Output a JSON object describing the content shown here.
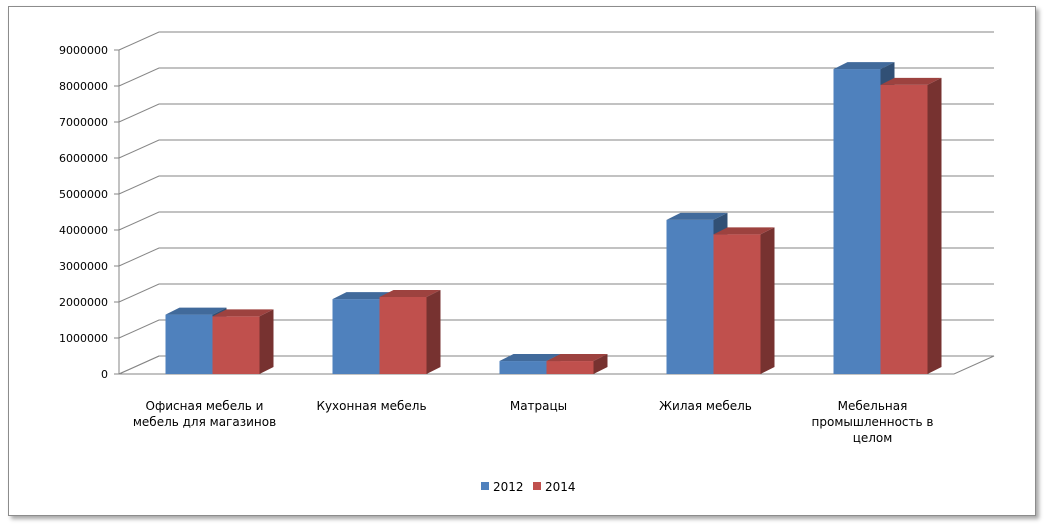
{
  "chart_data": {
    "type": "bar",
    "style": "3d-clustered-column",
    "categories": [
      [
        "Офисная мебель и",
        "мебель для магазинов"
      ],
      [
        "Кухонная мебель"
      ],
      [
        "Матрацы"
      ],
      [
        "Жилая мебель"
      ],
      [
        "Мебельная",
        "промышленность в",
        "целом"
      ]
    ],
    "series": [
      {
        "name": "2012",
        "color": "#4F81BD",
        "values": [
          1650000,
          2080000,
          360000,
          4280000,
          8470000
        ]
      },
      {
        "name": "2014",
        "color": "#C0504D",
        "values": [
          1600000,
          2140000,
          360000,
          3880000,
          8030000
        ]
      }
    ],
    "yticks": [
      "0",
      "1000000",
      "2000000",
      "3000000",
      "4000000",
      "5000000",
      "6000000",
      "7000000",
      "8000000",
      "9000000"
    ],
    "ylim": [
      0,
      9000000
    ],
    "grid": true,
    "legend_position": "bottom",
    "title": "",
    "xlabel": "",
    "ylabel": ""
  }
}
